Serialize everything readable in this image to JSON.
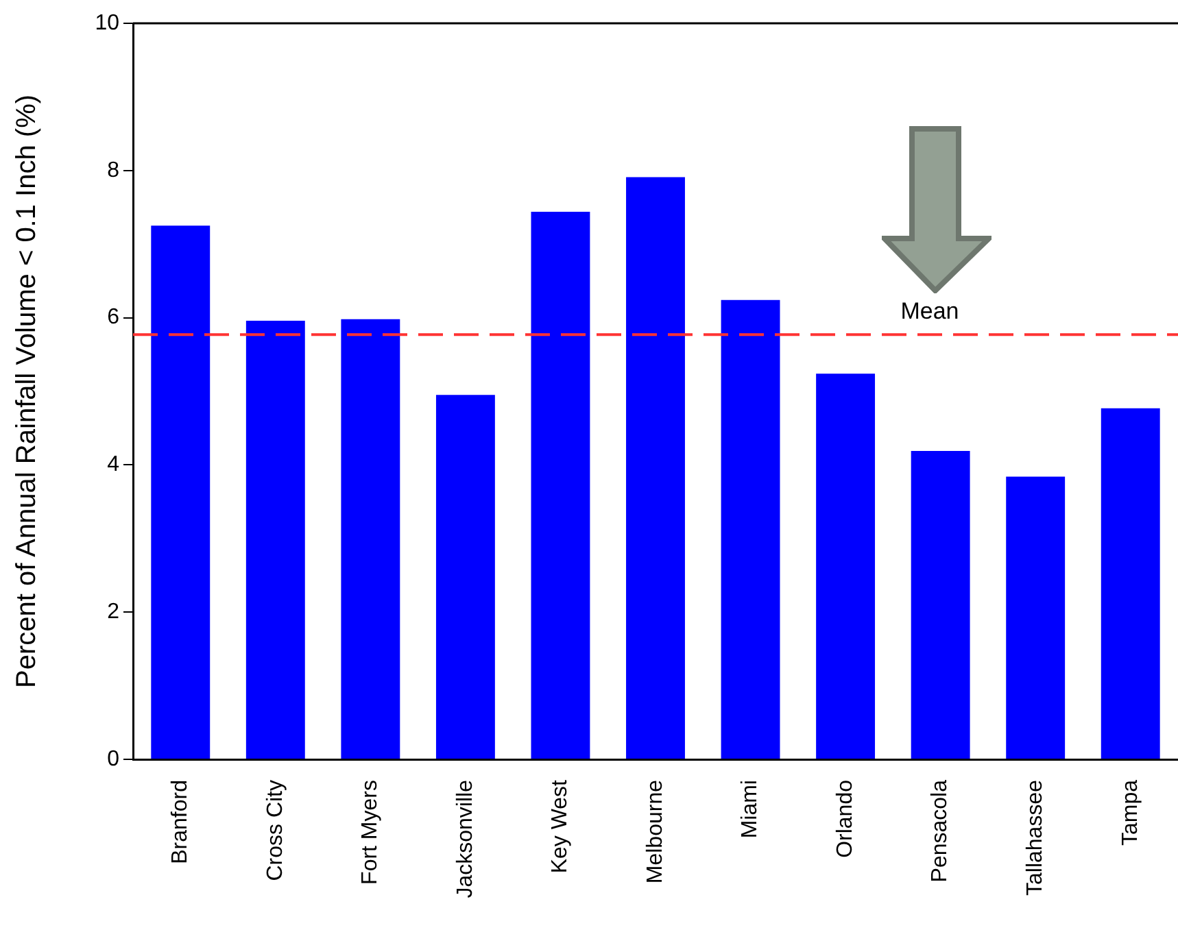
{
  "chart_data": {
    "type": "bar",
    "ylabel": "Percent of Annual Rainfall Volume < 0.1 Inch (%)",
    "categories": [
      "Branford",
      "Cross City",
      "Fort Myers",
      "Jacksonville",
      "Key West",
      "Melbourne",
      "Miami",
      "Orlando",
      "Pensacola",
      "Tallahassee",
      "Tampa"
    ],
    "values": [
      7.25,
      5.96,
      5.98,
      4.95,
      7.44,
      7.91,
      6.24,
      5.24,
      4.19,
      3.84,
      4.77
    ],
    "color": "#0000ff",
    "ylim": [
      0,
      10
    ],
    "yticks": [
      0,
      2,
      4,
      6,
      8,
      10
    ],
    "grid": false,
    "legend": false,
    "ref_lines": [
      {
        "axis": "y",
        "value": 5.77,
        "label": "Mean",
        "color": "#ff3333",
        "line_style": "dashed"
      }
    ]
  }
}
